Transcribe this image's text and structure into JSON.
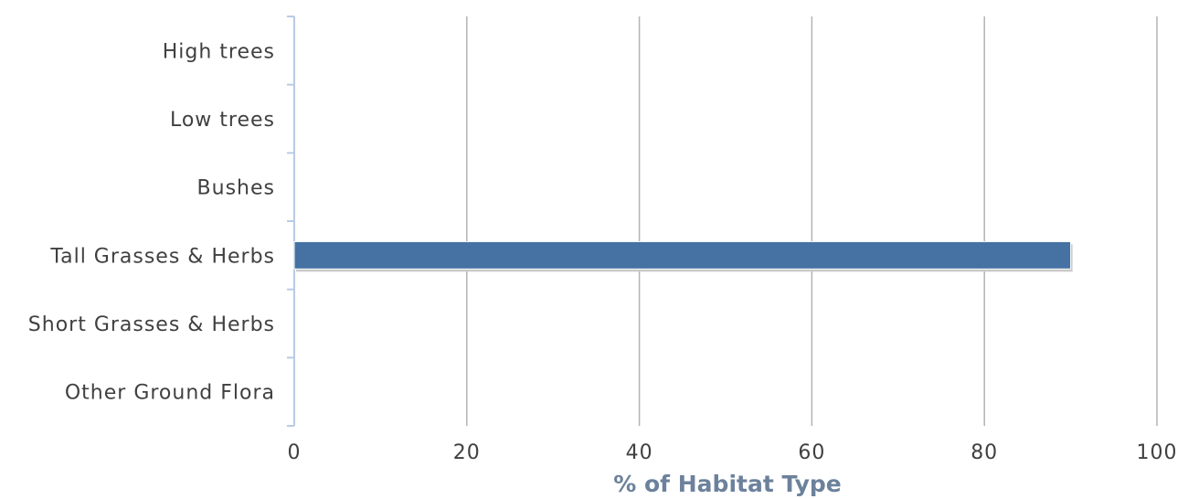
{
  "chart_data": {
    "type": "bar",
    "orientation": "horizontal",
    "categories": [
      "High trees",
      "Low trees",
      "Bushes",
      "Tall Grasses & Herbs",
      "Short Grasses & Herbs",
      "Other Ground Flora"
    ],
    "values": [
      0,
      0,
      0,
      90,
      0,
      0
    ],
    "xlabel": "% of Habitat Type",
    "ylabel": "",
    "xlim": [
      0,
      100
    ],
    "xticks": [
      "0",
      "20",
      "40",
      "60",
      "80",
      "100"
    ],
    "grid": true,
    "bar_color": "#4571a3",
    "axis_title_color": "#6c819b"
  }
}
